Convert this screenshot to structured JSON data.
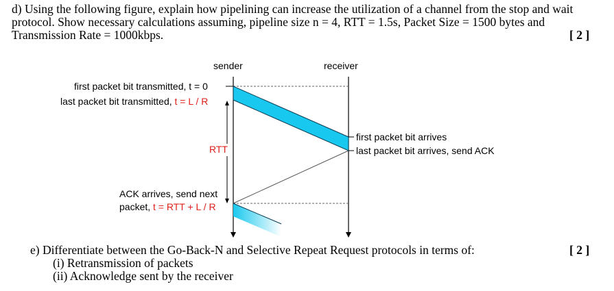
{
  "question_d": {
    "line1": "d) Using the following figure, explain how pipelining can increase the utilization of a channel from the stop and wait",
    "line2": "protocol. Show necessary calculations assuming, pipeline size n = 4, RTT = 1.5s, Packet Size = 1500 bytes and",
    "line3": "Transmission Rate = 1000kbps.",
    "marks": "[ 2 ]"
  },
  "figure": {
    "sender_label": "sender",
    "receiver_label": "receiver",
    "first_bit_tx": "first packet bit transmitted, t = 0",
    "last_bit_tx_prefix": "last packet bit transmitted, ",
    "last_bit_tx_eq": "t = L / R",
    "rtt_label": "RTT",
    "first_bit_arrives": "first packet bit arrives",
    "last_bit_arrives": "last packet bit arrives, send ACK",
    "ack_line1": "ACK arrives, send next",
    "ack_line2_prefix": "packet, ",
    "ack_line2_eq": "t = RTT + L / R",
    "packet_color": "#19c8ee",
    "label_red": "#e0201a"
  },
  "question_e": {
    "stem": "e) Differentiate between the Go-Back-N and Selective Repeat Request protocols in terms of:",
    "item1": "(i)  Retransmission of packets",
    "item2": "(ii) Acknowledge sent by the receiver",
    "marks": "[ 2 ]"
  }
}
